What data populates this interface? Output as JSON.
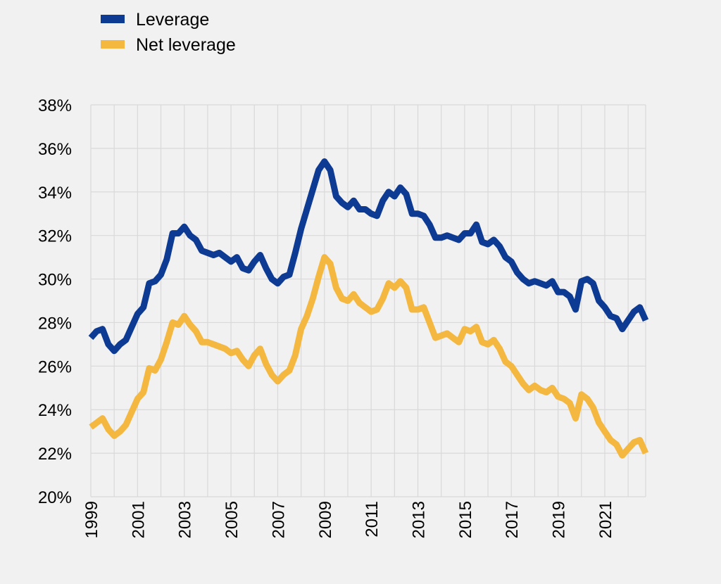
{
  "chart_data": {
    "type": "line",
    "title": "",
    "xlabel": "",
    "ylabel": "",
    "x_start": 1999.0,
    "x_step": 0.25,
    "xlim": [
      1999.0,
      2022.75
    ],
    "ylim": [
      20,
      38
    ],
    "x_tick_labels": [
      "1999",
      "2001",
      "2003",
      "2005",
      "2007",
      "2009",
      "2011",
      "2013",
      "2015",
      "2017",
      "2019",
      "2021"
    ],
    "x_tick_values": [
      1999,
      2001,
      2003,
      2005,
      2007,
      2009,
      2011,
      2013,
      2015,
      2017,
      2019,
      2021
    ],
    "y_tick_values": [
      20,
      22,
      24,
      26,
      28,
      30,
      32,
      34,
      36,
      38
    ],
    "y_tick_labels": [
      "20%",
      "22%",
      "24%",
      "26%",
      "28%",
      "30%",
      "32%",
      "34%",
      "36%",
      "38%"
    ],
    "grid": true,
    "legend_position": "top-left",
    "series": [
      {
        "name": "Leverage",
        "color": "#0d3a92",
        "values": [
          27.3,
          27.6,
          27.7,
          27.0,
          26.7,
          27.0,
          27.2,
          27.8,
          28.4,
          28.7,
          29.8,
          29.9,
          30.2,
          30.9,
          32.1,
          32.1,
          32.4,
          32.0,
          31.8,
          31.3,
          31.2,
          31.1,
          31.2,
          31.0,
          30.8,
          31.0,
          30.5,
          30.4,
          30.8,
          31.1,
          30.5,
          30.0,
          29.8,
          30.1,
          30.2,
          31.2,
          32.3,
          33.2,
          34.1,
          35.0,
          35.4,
          35.0,
          33.8,
          33.5,
          33.3,
          33.6,
          33.2,
          33.2,
          33.0,
          32.9,
          33.6,
          34.0,
          33.8,
          34.2,
          33.9,
          33.0,
          33.0,
          32.9,
          32.5,
          31.9,
          31.9,
          32.0,
          31.9,
          31.8,
          32.1,
          32.1,
          32.5,
          31.7,
          31.6,
          31.8,
          31.5,
          31.0,
          30.8,
          30.3,
          30.0,
          29.8,
          29.9,
          29.8,
          29.7,
          29.9,
          29.4,
          29.4,
          29.2,
          28.6,
          29.9,
          30.0,
          29.8,
          29.0,
          28.7,
          28.3,
          28.2,
          27.7,
          28.1,
          28.5,
          28.7,
          28.1
        ]
      },
      {
        "name": "Net leverage",
        "color": "#f4b840",
        "values": [
          23.2,
          23.4,
          23.6,
          23.1,
          22.8,
          23.0,
          23.3,
          23.9,
          24.5,
          24.8,
          25.9,
          25.8,
          26.3,
          27.1,
          28.0,
          27.9,
          28.3,
          27.9,
          27.6,
          27.1,
          27.1,
          27.0,
          26.9,
          26.8,
          26.6,
          26.7,
          26.3,
          26.0,
          26.5,
          26.8,
          26.1,
          25.6,
          25.3,
          25.6,
          25.8,
          26.5,
          27.7,
          28.3,
          29.1,
          30.1,
          31.0,
          30.7,
          29.6,
          29.1,
          29.0,
          29.3,
          28.9,
          28.7,
          28.5,
          28.6,
          29.1,
          29.8,
          29.6,
          29.9,
          29.6,
          28.6,
          28.6,
          28.7,
          28.0,
          27.3,
          27.4,
          27.5,
          27.3,
          27.1,
          27.7,
          27.6,
          27.8,
          27.1,
          27.0,
          27.2,
          26.8,
          26.2,
          26.0,
          25.6,
          25.2,
          24.9,
          25.1,
          24.9,
          24.8,
          25.0,
          24.6,
          24.5,
          24.3,
          23.6,
          24.7,
          24.5,
          24.1,
          23.4,
          23.0,
          22.6,
          22.4,
          21.9,
          22.2,
          22.5,
          22.6,
          22.0
        ]
      }
    ]
  }
}
